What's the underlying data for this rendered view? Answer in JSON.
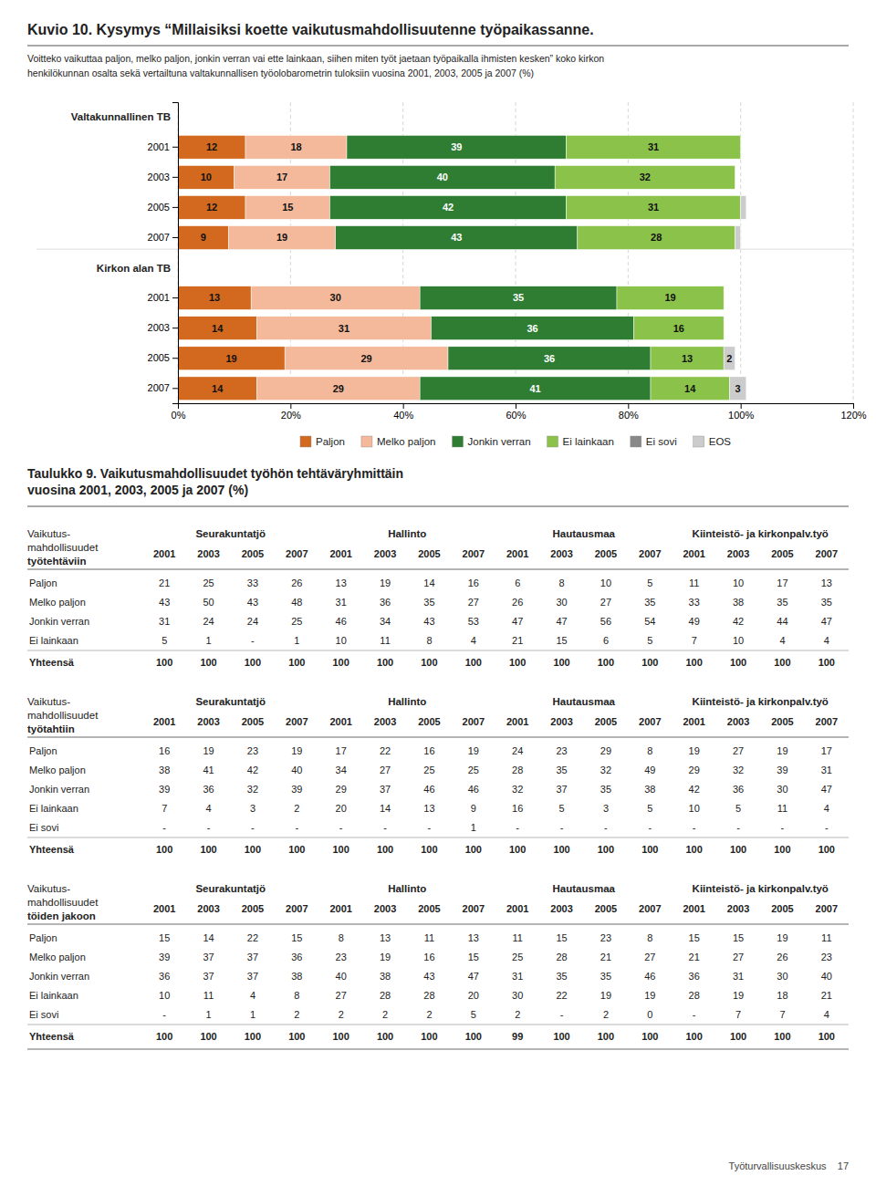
{
  "chart_data": {
    "type": "bar",
    "orientation": "horizontal",
    "stacked": true,
    "title": "Kuvio 10. Kysymys “Millaisiksi koette vaikutusmahdollisuutenne työpaikassanne.",
    "subtitle": [
      "Voitteko vaikuttaa paljon, melko paljon, jonkin verran vai ette lainkaan, siihen miten työt jaetaan työpaikalla ihmisten kesken” koko kirkon",
      "henkilökunnan osalta sekä vertailtuna valtakunnallisen työolobarometrin tuloksiin vuosina 2001, 2003, 2005 ja 2007 (%)"
    ],
    "annotations": [
      "Valtakunnallinen TB",
      "Kirkon alan TB"
    ],
    "categories": [
      "2001",
      "2003",
      "2005",
      "2007",
      "2001",
      "2003",
      "2005",
      "2007"
    ],
    "series": [
      {
        "name": "Paljon",
        "color": "#d2691e",
        "values": [
          12,
          10,
          12,
          9,
          13,
          14,
          19,
          14
        ]
      },
      {
        "name": "Melko paljon",
        "color": "#f4b89a",
        "values": [
          18,
          17,
          15,
          19,
          30,
          31,
          29,
          29
        ]
      },
      {
        "name": "Jonkin verran",
        "color": "#2e7d32",
        "values": [
          39,
          40,
          42,
          43,
          35,
          36,
          36,
          41
        ]
      },
      {
        "name": "Ei lainkaan",
        "color": "#8bc34a",
        "values": [
          31,
          32,
          31,
          28,
          19,
          16,
          13,
          14
        ]
      },
      {
        "name": "Ei sovi",
        "color": "#888888",
        "values": [
          0,
          0,
          0,
          0,
          0,
          0,
          0,
          0
        ]
      },
      {
        "name": "EOS",
        "color": "#cccccc",
        "values": [
          0,
          0,
          1,
          1,
          0,
          0,
          2,
          3
        ]
      }
    ],
    "xlim": [
      0,
      120
    ],
    "xticks": [
      {
        "value": 0,
        "label": "0%"
      },
      {
        "value": 20,
        "label": "20%"
      },
      {
        "value": 40,
        "label": "40%"
      },
      {
        "value": 60,
        "label": "60%"
      },
      {
        "value": 80,
        "label": "80%"
      },
      {
        "value": 100,
        "label": "100%"
      },
      {
        "value": 120,
        "label": "120%"
      }
    ],
    "grid": true,
    "legend": "bottom",
    "data_labels": true
  },
  "table": {
    "title": [
      "Taulukko 9.   Vaikutusmahdollisuudet työhön tehtäväryhmittäin",
      "vuosina 2001, 2003, 2005 ja 2007 (%)"
    ],
    "column_groups": [
      "Seurakuntatjö",
      "Hallinto",
      "Hautausmaa",
      "Kiinteistö- ja kirkonpalv.työ"
    ],
    "years": [
      "2001",
      "2003",
      "2005",
      "2007"
    ],
    "sections": [
      {
        "header": [
          "Vaikutus-",
          "mahdollisuudet",
          "työtehtäviin"
        ],
        "rows": [
          {
            "label": "Paljon",
            "values": [
              "21",
              "25",
              "33",
              "26",
              "13",
              "19",
              "14",
              "16",
              "6",
              "8",
              "10",
              "5",
              "11",
              "10",
              "17",
              "13"
            ]
          },
          {
            "label": "Melko paljon",
            "values": [
              "43",
              "50",
              "43",
              "48",
              "31",
              "36",
              "35",
              "27",
              "26",
              "30",
              "27",
              "35",
              "33",
              "38",
              "35",
              "35"
            ]
          },
          {
            "label": "Jonkin verran",
            "values": [
              "31",
              "24",
              "24",
              "25",
              "46",
              "34",
              "43",
              "53",
              "47",
              "47",
              "56",
              "54",
              "49",
              "42",
              "44",
              "47"
            ]
          },
          {
            "label": "Ei lainkaan",
            "values": [
              "5",
              "1",
              "-",
              "1",
              "10",
              "11",
              "8",
              "4",
              "21",
              "15",
              "6",
              "5",
              "7",
              "10",
              "4",
              "4"
            ]
          },
          {
            "label": "Yhteensä",
            "values": [
              "100",
              "100",
              "100",
              "100",
              "100",
              "100",
              "100",
              "100",
              "100",
              "100",
              "100",
              "100",
              "100",
              "100",
              "100",
              "100"
            ]
          }
        ]
      },
      {
        "header": [
          "Vaikutus-",
          "mahdollisuudet",
          "työtahtiin"
        ],
        "rows": [
          {
            "label": "Paljon",
            "values": [
              "16",
              "19",
              "23",
              "19",
              "17",
              "22",
              "16",
              "19",
              "24",
              "23",
              "29",
              "8",
              "19",
              "27",
              "19",
              "17"
            ]
          },
          {
            "label": "Melko paljon",
            "values": [
              "38",
              "41",
              "42",
              "40",
              "34",
              "27",
              "25",
              "25",
              "28",
              "35",
              "32",
              "49",
              "29",
              "32",
              "39",
              "31"
            ]
          },
          {
            "label": "Jonkin verran",
            "values": [
              "39",
              "36",
              "32",
              "39",
              "29",
              "37",
              "46",
              "46",
              "32",
              "37",
              "35",
              "38",
              "42",
              "36",
              "30",
              "47"
            ]
          },
          {
            "label": "Ei lainkaan",
            "values": [
              "7",
              "4",
              "3",
              "2",
              "20",
              "14",
              "13",
              "9",
              "16",
              "5",
              "3",
              "5",
              "10",
              "5",
              "11",
              "4"
            ]
          },
          {
            "label": "Ei sovi",
            "values": [
              "-",
              "-",
              "-",
              "-",
              "-",
              "-",
              "-",
              "1",
              "-",
              "-",
              "-",
              "-",
              "-",
              "-",
              "-",
              "-"
            ]
          },
          {
            "label": "Yhteensä",
            "values": [
              "100",
              "100",
              "100",
              "100",
              "100",
              "100",
              "100",
              "100",
              "100",
              "100",
              "100",
              "100",
              "100",
              "100",
              "100",
              "100"
            ]
          }
        ]
      },
      {
        "header": [
          "Vaikutus-",
          "mahdollisuudet",
          "töiden jakoon"
        ],
        "rows": [
          {
            "label": "Paljon",
            "values": [
              "15",
              "14",
              "22",
              "15",
              "8",
              "13",
              "11",
              "13",
              "11",
              "15",
              "23",
              "8",
              "15",
              "15",
              "19",
              "11"
            ]
          },
          {
            "label": "Melko paljon",
            "values": [
              "39",
              "37",
              "37",
              "36",
              "23",
              "19",
              "16",
              "15",
              "25",
              "28",
              "21",
              "27",
              "21",
              "27",
              "26",
              "23"
            ]
          },
          {
            "label": "Jonkin verran",
            "values": [
              "36",
              "37",
              "37",
              "38",
              "40",
              "38",
              "43",
              "47",
              "31",
              "35",
              "35",
              "46",
              "36",
              "31",
              "30",
              "40"
            ]
          },
          {
            "label": "Ei lainkaan",
            "values": [
              "10",
              "11",
              "4",
              "8",
              "27",
              "28",
              "28",
              "20",
              "30",
              "22",
              "19",
              "19",
              "28",
              "19",
              "18",
              "21"
            ]
          },
          {
            "label": "Ei sovi",
            "values": [
              "-",
              "1",
              "1",
              "2",
              "2",
              "2",
              "2",
              "5",
              "2",
              "-",
              "2",
              "0",
              "-",
              "7",
              "7",
              "4"
            ]
          },
          {
            "label": "Yhteensä",
            "values": [
              "100",
              "100",
              "100",
              "100",
              "100",
              "100",
              "100",
              "100",
              "99",
              "100",
              "100",
              "100",
              "100",
              "100",
              "100",
              "100"
            ]
          }
        ]
      }
    ]
  },
  "footer": "Työturvallisuuskeskus    17"
}
